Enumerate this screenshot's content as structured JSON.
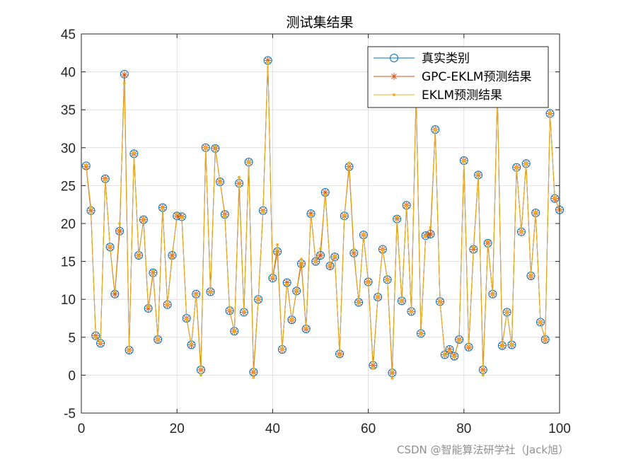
{
  "watermark": "CSDN @智能算法研学社（Jack旭）",
  "chart_data": {
    "type": "line",
    "title": "测试集结果",
    "xlabel": "",
    "ylabel": "",
    "xlim": [
      0,
      100
    ],
    "ylim": [
      -5,
      45
    ],
    "xticks": [
      0,
      20,
      40,
      60,
      80,
      100
    ],
    "yticks": [
      -5,
      0,
      5,
      10,
      15,
      20,
      25,
      30,
      35,
      40,
      45
    ],
    "grid": true,
    "legend_position": "top-right",
    "x": [
      1,
      2,
      3,
      4,
      5,
      6,
      7,
      8,
      9,
      10,
      11,
      12,
      13,
      14,
      15,
      16,
      17,
      18,
      19,
      20,
      21,
      22,
      23,
      24,
      25,
      26,
      27,
      28,
      29,
      30,
      31,
      32,
      33,
      34,
      35,
      36,
      37,
      38,
      39,
      40,
      41,
      42,
      43,
      44,
      45,
      46,
      47,
      48,
      49,
      50,
      51,
      52,
      53,
      54,
      55,
      56,
      57,
      58,
      59,
      60,
      61,
      62,
      63,
      64,
      65,
      66,
      67,
      68,
      69,
      70,
      71,
      72,
      73,
      74,
      75,
      76,
      77,
      78,
      79,
      80,
      81,
      82,
      83,
      84,
      85,
      86,
      87,
      88,
      89,
      90,
      91,
      92,
      93,
      94,
      95,
      96,
      97,
      98,
      99,
      100
    ],
    "series": [
      {
        "name": "真实类别",
        "color": "#0072BD",
        "marker": "circle",
        "values": [
          27.6,
          21.7,
          5.2,
          4.2,
          25.9,
          16.9,
          10.7,
          19.0,
          39.7,
          3.3,
          29.2,
          15.8,
          20.5,
          8.8,
          13.5,
          4.7,
          22.1,
          9.3,
          15.8,
          21.0,
          20.9,
          7.5,
          4.0,
          10.7,
          0.7,
          30.0,
          11.0,
          29.9,
          25.5,
          21.2,
          8.5,
          5.8,
          25.3,
          8.3,
          28.1,
          0.4,
          10.0,
          21.7,
          41.5,
          12.8,
          16.3,
          3.4,
          12.2,
          7.3,
          11.1,
          14.7,
          6.1,
          21.3,
          15.0,
          15.8,
          24.1,
          14.4,
          15.6,
          2.8,
          21.0,
          27.5,
          16.1,
          9.6,
          18.5,
          12.3,
          1.3,
          10.3,
          16.6,
          12.6,
          0.3,
          20.6,
          9.8,
          22.4,
          8.4,
          37.2,
          5.5,
          18.4,
          18.6,
          32.4,
          9.7,
          2.7,
          3.4,
          2.5,
          4.7,
          28.3,
          3.7,
          16.6,
          26.4,
          0.7,
          17.4,
          10.7,
          37.2,
          3.9,
          8.3,
          4.0,
          27.4,
          18.9,
          27.9,
          13.1,
          21.4,
          7.0,
          4.7,
          34.5,
          23.3,
          21.8
        ]
      },
      {
        "name": "GPC-EKLM预测结果",
        "color": "#D95319",
        "marker": "star",
        "values": [
          27.5,
          21.7,
          5.2,
          4.2,
          25.9,
          16.9,
          10.7,
          19.0,
          39.6,
          3.3,
          29.2,
          15.8,
          20.5,
          8.8,
          13.5,
          4.7,
          22.1,
          9.3,
          15.8,
          21.0,
          20.9,
          7.5,
          4.0,
          10.7,
          0.7,
          30.0,
          11.0,
          29.9,
          25.5,
          21.2,
          8.5,
          5.8,
          25.3,
          8.3,
          28.1,
          0.4,
          10.0,
          21.7,
          41.5,
          12.8,
          16.3,
          3.4,
          12.2,
          7.3,
          11.1,
          14.7,
          6.1,
          21.3,
          15.0,
          15.8,
          24.1,
          14.4,
          15.6,
          2.8,
          21.0,
          27.5,
          16.1,
          9.6,
          18.5,
          12.3,
          1.3,
          10.3,
          16.6,
          12.6,
          0.3,
          20.6,
          9.8,
          22.4,
          8.4,
          37.2,
          5.5,
          18.4,
          18.6,
          32.4,
          9.7,
          2.7,
          3.4,
          2.5,
          4.7,
          28.3,
          3.7,
          16.6,
          26.4,
          0.7,
          17.4,
          10.7,
          37.2,
          3.9,
          8.3,
          4.0,
          27.4,
          18.9,
          27.9,
          13.1,
          21.4,
          7.0,
          4.7,
          34.5,
          23.3,
          21.8
        ]
      },
      {
        "name": "EKLM预测结果",
        "color": "#EDB120",
        "marker": "dot",
        "values": [
          27.7,
          22.2,
          5.0,
          4.3,
          25.8,
          17.0,
          11.0,
          20.0,
          38.5,
          3.2,
          29.3,
          15.6,
          20.7,
          9.0,
          13.8,
          4.7,
          22.0,
          9.3,
          15.5,
          21.3,
          20.8,
          7.4,
          4.1,
          10.6,
          0.0,
          30.0,
          11.0,
          30.2,
          25.4,
          21.0,
          8.6,
          5.7,
          26.1,
          8.4,
          28.1,
          -0.3,
          10.1,
          21.6,
          41.3,
          12.9,
          17.2,
          3.4,
          12.0,
          7.3,
          11.2,
          15.3,
          6.2,
          21.1,
          15.0,
          16.7,
          23.8,
          14.5,
          15.7,
          2.6,
          21.1,
          28.0,
          16.6,
          9.5,
          18.6,
          12.2,
          0.9,
          10.3,
          16.5,
          12.6,
          -0.4,
          20.9,
          9.8,
          22.3,
          8.4,
          36.8,
          5.4,
          18.3,
          19.5,
          32.4,
          9.7,
          2.6,
          3.2,
          2.4,
          4.6,
          28.3,
          3.8,
          16.9,
          26.6,
          0.0,
          17.7,
          10.6,
          37.0,
          3.8,
          8.3,
          4.0,
          27.4,
          18.9,
          27.9,
          13.1,
          21.5,
          7.0,
          4.7,
          34.6,
          23.4,
          21.8
        ]
      }
    ]
  }
}
